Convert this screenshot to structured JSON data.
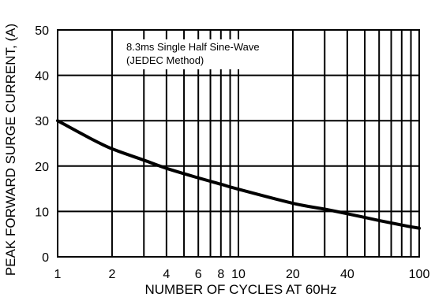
{
  "chart_data": {
    "type": "line",
    "xlabel": "NUMBER OF CYCLES AT 60Hz",
    "ylabel": "PEAK FORWARD SURGE CURRENT, (A)",
    "xscale": "log",
    "xlim": [
      1,
      100
    ],
    "ylim": [
      0,
      50
    ],
    "grid": true,
    "x_tick_labels": [
      "1",
      "2",
      "4",
      "6",
      "8",
      "10",
      "20",
      "40",
      "100"
    ],
    "x_ticks": [
      1,
      2,
      4,
      6,
      8,
      10,
      20,
      40,
      100
    ],
    "x_gridlines": [
      1,
      2,
      3,
      4,
      5,
      6,
      7,
      8,
      9,
      10,
      20,
      30,
      40,
      50,
      60,
      70,
      80,
      90,
      100
    ],
    "y_tick_labels": [
      "0",
      "10",
      "20",
      "30",
      "40",
      "50"
    ],
    "y_ticks": [
      0,
      10,
      20,
      30,
      40,
      50
    ],
    "annotations": [
      "8.3ms Single Half Sine-Wave",
      "(JEDEC Method)"
    ],
    "series": [
      {
        "x": [
          1,
          1.5,
          2,
          3,
          4,
          6,
          8,
          10,
          20,
          30,
          40,
          60,
          80,
          100
        ],
        "values": [
          30,
          26.2,
          23.8,
          21.3,
          19.5,
          17.4,
          16.0,
          14.9,
          11.8,
          10.5,
          9.5,
          8.0,
          7.0,
          6.3
        ]
      }
    ]
  }
}
